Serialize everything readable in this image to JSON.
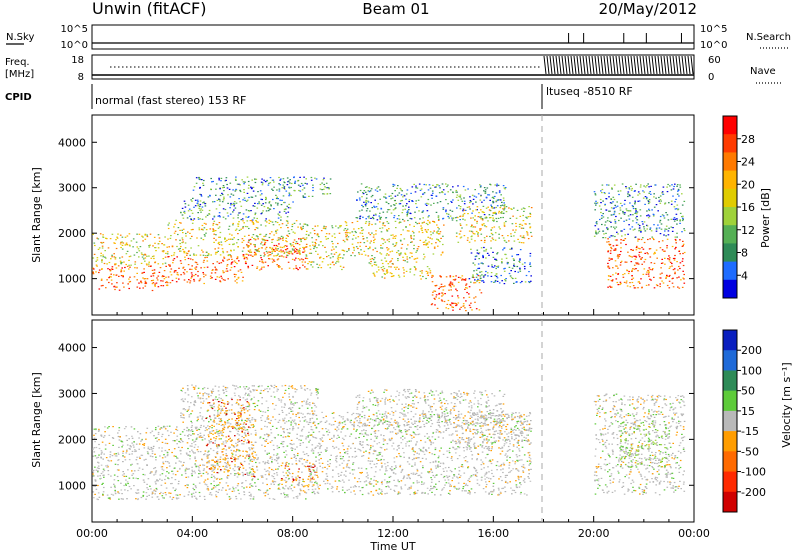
{
  "header": {
    "station": "Unwin (fitACF)",
    "beam": "Beam 01",
    "date": "20/May/2012"
  },
  "status_panels": {
    "nsky": {
      "label": "N.Sky",
      "ticks": [
        "10^5",
        "10^0"
      ]
    },
    "nsearch": {
      "label": "N.Search",
      "ticks": [
        "10^5",
        "10^0"
      ]
    },
    "freq": {
      "label_line1": "Freq.",
      "label_line2": "[MHz]",
      "ticks": [
        "18",
        "8"
      ]
    },
    "nave": {
      "label": "Nave",
      "ticks": [
        "60",
        "0"
      ]
    },
    "cpid": {
      "label": "CPID",
      "segments": [
        {
          "start_hour": 0,
          "end_hour": 18,
          "text": "normal (fast stereo) 153 RF"
        },
        {
          "start_hour": 18,
          "end_hour": 24,
          "text": "ltuseq -8510 RF"
        }
      ]
    }
  },
  "chart_data": [
    {
      "type": "heatmap",
      "name": "power",
      "ylabel": "Slant Range [km]",
      "ylim": [
        200,
        4600
      ],
      "yticks": [
        "1000",
        "2000",
        "3000",
        "4000"
      ],
      "xlim_hours": [
        0,
        24
      ],
      "colorbar": {
        "label": "Power [dB]",
        "ticks": [
          "28",
          "24",
          "20",
          "16",
          "12",
          "8",
          "4"
        ],
        "colors": [
          "#ff0000",
          "#ff3b00",
          "#ff7a00",
          "#ffb400",
          "#e0cc00",
          "#9fd23a",
          "#55b055",
          "#2e8b57",
          "#1e6cff",
          "#0000e0"
        ]
      },
      "regions": [
        {
          "h0": 0.0,
          "h1": 3.0,
          "r0": 750,
          "r1": 1300,
          "level": "high"
        },
        {
          "h0": 3.0,
          "h1": 6.0,
          "r0": 900,
          "r1": 1500,
          "level": "high"
        },
        {
          "h0": 6.0,
          "h1": 8.6,
          "r0": 1200,
          "r1": 1900,
          "level": "high"
        },
        {
          "h0": 0.0,
          "h1": 3.0,
          "r0": 1300,
          "r1": 2000,
          "level": "mid"
        },
        {
          "h0": 3.0,
          "h1": 8.5,
          "r0": 1500,
          "r1": 2300,
          "level": "mid"
        },
        {
          "h0": 3.5,
          "h1": 8.0,
          "r0": 2300,
          "r1": 2800,
          "level": "low"
        },
        {
          "h0": 4.0,
          "h1": 9.5,
          "r0": 2800,
          "r1": 3250,
          "level": "low"
        },
        {
          "h0": 8.5,
          "h1": 10.0,
          "r0": 1200,
          "r1": 2200,
          "level": "mid"
        },
        {
          "h0": 10.0,
          "h1": 14.0,
          "r0": 1500,
          "r1": 2300,
          "level": "mid"
        },
        {
          "h0": 10.5,
          "h1": 16.5,
          "r0": 2300,
          "r1": 3100,
          "level": "low"
        },
        {
          "h0": 11.0,
          "h1": 13.5,
          "r0": 1000,
          "r1": 1500,
          "level": "mid"
        },
        {
          "h0": 13.5,
          "h1": 15.5,
          "r0": 300,
          "r1": 1100,
          "level": "high"
        },
        {
          "h0": 15.0,
          "h1": 17.5,
          "r0": 900,
          "r1": 1700,
          "level": "low"
        },
        {
          "h0": 14.5,
          "h1": 17.5,
          "r0": 1800,
          "r1": 2600,
          "level": "mid"
        },
        {
          "h0": 20.5,
          "h1": 23.6,
          "r0": 800,
          "r1": 1900,
          "level": "high"
        },
        {
          "h0": 20.0,
          "h1": 23.6,
          "r0": 1900,
          "r1": 3100,
          "level": "low"
        }
      ]
    },
    {
      "type": "heatmap",
      "name": "velocity",
      "ylabel": "Slant Range [km]",
      "ylim": [
        200,
        4600
      ],
      "yticks": [
        "1000",
        "2000",
        "3000",
        "4000"
      ],
      "xlabel": "Time UT",
      "xticks": [
        "00:00",
        "04:00",
        "08:00",
        "12:00",
        "16:00",
        "20:00",
        "00:00"
      ],
      "xlim_hours": [
        0,
        24
      ],
      "colorbar": {
        "label": "Velocity [m s⁻¹]",
        "ticks": [
          "200",
          "100",
          "50",
          "15",
          "-15",
          "-50",
          "-100",
          "-200"
        ],
        "colors": [
          "#0a1fbf",
          "#1f6ad8",
          "#2e8b57",
          "#5ecb3a",
          "#b9b9b9",
          "#ff9d00",
          "#ff6a00",
          "#ff2a00",
          "#d00000"
        ]
      },
      "regions": [
        {
          "h0": 0.0,
          "h1": 8.5,
          "r0": 700,
          "r1": 2300,
          "level": "gray"
        },
        {
          "h0": 3.5,
          "h1": 9.0,
          "r0": 2300,
          "r1": 3200,
          "level": "gray"
        },
        {
          "h0": 4.5,
          "h1": 6.5,
          "r0": 1200,
          "r1": 2900,
          "level": "orange"
        },
        {
          "h0": 7.5,
          "h1": 9.0,
          "r0": 1000,
          "r1": 1500,
          "level": "orange"
        },
        {
          "h0": 8.5,
          "h1": 17.5,
          "r0": 800,
          "r1": 2600,
          "level": "gray"
        },
        {
          "h0": 10.5,
          "h1": 16.5,
          "r0": 2300,
          "r1": 3100,
          "level": "gray"
        },
        {
          "h0": 14.5,
          "h1": 17.5,
          "r0": 1800,
          "r1": 2600,
          "level": "gray"
        },
        {
          "h0": 20.0,
          "h1": 23.6,
          "r0": 800,
          "r1": 3000,
          "level": "gray"
        },
        {
          "h0": 21.0,
          "h1": 23.0,
          "r0": 1400,
          "r1": 2400,
          "level": "green"
        }
      ]
    }
  ]
}
